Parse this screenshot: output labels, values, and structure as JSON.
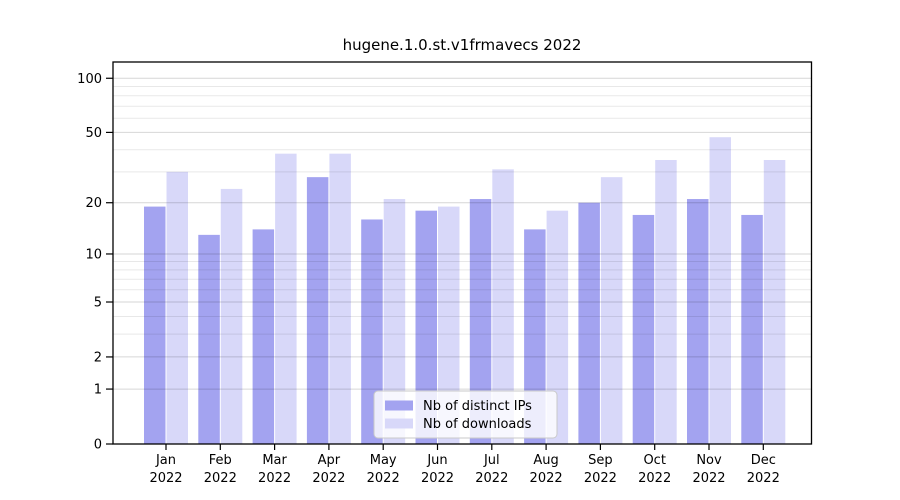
{
  "chart_data": {
    "type": "bar",
    "title": "hugene.1.0.st.v1frmavecs 2022",
    "categories": [
      "Jan",
      "Feb",
      "Mar",
      "Apr",
      "May",
      "Jun",
      "Jul",
      "Aug",
      "Sep",
      "Oct",
      "Nov",
      "Dec"
    ],
    "x_year_label": "2022",
    "series": [
      {
        "name": "Nb of distinct IPs",
        "color": "#a3a3f0",
        "values": [
          19,
          13,
          14,
          28,
          16,
          18,
          21,
          14,
          20,
          17,
          21,
          17
        ]
      },
      {
        "name": "Nb of downloads",
        "color": "#d8d8f9",
        "values": [
          30,
          24,
          38,
          38,
          21,
          19,
          31,
          18,
          28,
          35,
          47,
          35
        ]
      }
    ],
    "y_scale": "log10(value+1)",
    "ylim": [
      0,
      123
    ],
    "y_ticks": [
      0,
      1,
      2,
      5,
      10,
      20,
      50,
      100
    ],
    "y_minor_gridlines": [
      3,
      4,
      6,
      7,
      8,
      9,
      30,
      40,
      60,
      70,
      80,
      90
    ],
    "grid": true,
    "legend_position": "lower center",
    "axis_color": "#000000",
    "major_grid_color": "rgba(0,0,0,0.16)",
    "minor_grid_color": "rgba(0,0,0,0.09)"
  }
}
